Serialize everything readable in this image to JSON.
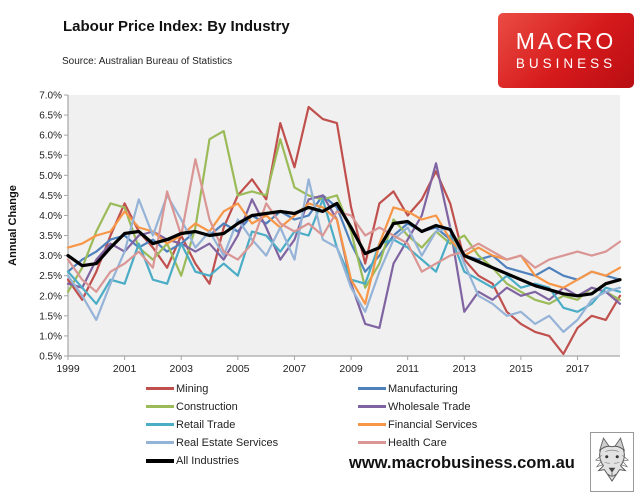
{
  "header": {
    "title": "Labour Price Index: By Industry",
    "source": "Source: Australian Bureau of Statistics"
  },
  "branding": {
    "logo_line1": "MACRO",
    "logo_line2": "BUSINESS",
    "logo_color": "#d61a1c",
    "website": "www.macrobusiness.com.au",
    "fox_logo": "wolf-sketch-icon"
  },
  "chart_data": {
    "type": "line",
    "title": "Labour Price Index: By Industry",
    "xlabel": "",
    "ylabel": "Annual Change",
    "xlim": [
      1999,
      2018.5
    ],
    "ylim": [
      0.5,
      7.0
    ],
    "ytick_step": 0.5,
    "ytick_format": "percent_1dp",
    "xticks": [
      1999,
      2001,
      2003,
      2005,
      2007,
      2009,
      2011,
      2013,
      2015,
      2017
    ],
    "grid": false,
    "plot_background": "#f0f0f0",
    "axis_color": "#a6a6a6",
    "legend_position": "bottom-two-columns",
    "x": [
      1999,
      1999.5,
      2000,
      2000.5,
      2001,
      2001.5,
      2002,
      2002.5,
      2003,
      2003.5,
      2004,
      2004.5,
      2005,
      2005.5,
      2006,
      2006.5,
      2007,
      2007.5,
      2008,
      2008.5,
      2009,
      2009.5,
      2010,
      2010.5,
      2011,
      2011.5,
      2012,
      2012.5,
      2013,
      2013.5,
      2014,
      2014.5,
      2015,
      2015.5,
      2016,
      2016.5,
      2017,
      2017.5,
      2018,
      2018.5
    ],
    "series": [
      {
        "name": "Mining",
        "color": "#C0504D",
        "thick": false,
        "values": [
          2.4,
          1.9,
          2.6,
          3.5,
          4.3,
          3.6,
          3.2,
          2.7,
          3.5,
          2.8,
          2.3,
          3.7,
          4.5,
          4.9,
          4.4,
          6.3,
          5.2,
          6.7,
          6.4,
          6.3,
          4.2,
          2.8,
          4.3,
          4.6,
          4.0,
          4.4,
          5.1,
          4.3,
          2.9,
          2.5,
          2.3,
          1.6,
          1.3,
          1.1,
          1.0,
          0.55,
          1.2,
          1.5,
          1.4,
          2.0
        ]
      },
      {
        "name": "Manufacturing",
        "color": "#4F81BD",
        "thick": false,
        "values": [
          2.6,
          2.9,
          3.1,
          3.4,
          3.5,
          3.2,
          3.4,
          3.1,
          3.3,
          3.6,
          3.5,
          3.8,
          3.6,
          4.0,
          3.8,
          4.1,
          3.9,
          4.0,
          4.5,
          4.2,
          3.3,
          2.6,
          3.0,
          3.5,
          3.8,
          3.6,
          3.7,
          3.4,
          3.0,
          2.9,
          3.0,
          2.7,
          2.6,
          2.5,
          2.7,
          2.5,
          2.4,
          2.6,
          2.5,
          2.4
        ]
      },
      {
        "name": "Construction",
        "color": "#9BBB59",
        "thick": false,
        "values": [
          2.1,
          2.7,
          3.6,
          4.3,
          4.2,
          3.2,
          2.9,
          3.3,
          2.5,
          3.7,
          5.9,
          6.1,
          4.5,
          4.6,
          4.5,
          5.9,
          4.7,
          4.5,
          4.4,
          4.5,
          3.6,
          2.2,
          2.8,
          3.9,
          3.5,
          3.2,
          3.6,
          3.3,
          3.5,
          3.0,
          2.7,
          2.3,
          2.1,
          1.9,
          1.8,
          2.0,
          1.9,
          2.2,
          2.1,
          1.9
        ]
      },
      {
        "name": "Wholesale Trade",
        "color": "#8064A2",
        "thick": false,
        "values": [
          2.3,
          2.2,
          2.9,
          3.3,
          3.1,
          3.5,
          3.6,
          3.4,
          3.3,
          3.1,
          3.3,
          2.9,
          3.5,
          4.4,
          3.7,
          2.9,
          3.4,
          4.4,
          4.5,
          3.9,
          2.3,
          1.3,
          1.2,
          2.8,
          3.4,
          4.0,
          5.3,
          3.7,
          1.6,
          2.1,
          1.9,
          2.2,
          2.0,
          2.1,
          1.9,
          2.2,
          2.0,
          2.2,
          2.1,
          1.8
        ]
      },
      {
        "name": "Retail Trade",
        "color": "#4BACC6",
        "thick": false,
        "values": [
          2.6,
          2.2,
          1.8,
          2.4,
          2.3,
          3.3,
          2.4,
          2.3,
          3.3,
          2.6,
          2.5,
          2.8,
          2.5,
          3.6,
          3.5,
          3.1,
          3.6,
          3.5,
          4.4,
          3.2,
          2.4,
          2.3,
          3.3,
          3.4,
          3.2,
          2.9,
          2.6,
          3.5,
          2.6,
          2.4,
          2.2,
          2.5,
          2.2,
          2.3,
          2.2,
          1.7,
          1.6,
          1.8,
          2.2,
          2.1
        ]
      },
      {
        "name": "Financial Services",
        "color": "#F79646",
        "thick": false,
        "values": [
          3.2,
          3.3,
          3.5,
          3.6,
          4.1,
          3.7,
          3.6,
          3.3,
          3.5,
          3.8,
          3.6,
          4.1,
          4.3,
          3.8,
          4.0,
          3.7,
          4.0,
          4.3,
          4.2,
          3.9,
          2.4,
          1.8,
          3.3,
          4.2,
          4.1,
          3.9,
          4.0,
          3.4,
          3.0,
          3.2,
          3.0,
          2.9,
          3.0,
          2.5,
          2.3,
          2.2,
          2.4,
          2.6,
          2.5,
          2.7
        ]
      },
      {
        "name": "Real Estate Services",
        "color": "#95B3D7",
        "thick": false,
        "values": [
          2.5,
          2.0,
          1.4,
          2.3,
          3.1,
          4.4,
          3.5,
          4.5,
          3.9,
          3.2,
          3.6,
          3.0,
          3.9,
          3.4,
          3.0,
          3.7,
          2.9,
          4.9,
          3.4,
          3.2,
          2.2,
          1.6,
          2.6,
          3.4,
          3.7,
          3.0,
          3.6,
          3.7,
          2.8,
          2.0,
          1.8,
          1.5,
          1.6,
          1.3,
          1.5,
          1.1,
          1.4,
          1.9,
          2.1,
          2.2
        ]
      },
      {
        "name": "Health Care",
        "color": "#D99694",
        "thick": false,
        "values": [
          2.9,
          2.4,
          2.1,
          2.6,
          2.8,
          3.1,
          2.7,
          4.6,
          3.5,
          5.4,
          3.9,
          3.1,
          2.9,
          3.3,
          4.3,
          3.8,
          3.6,
          3.8,
          3.5,
          4.1,
          4.0,
          3.5,
          3.7,
          3.5,
          3.3,
          2.6,
          2.8,
          3.0,
          3.1,
          3.3,
          3.1,
          2.9,
          3.0,
          2.7,
          2.9,
          3.0,
          3.1,
          3.0,
          3.1,
          3.35
        ]
      },
      {
        "name": "All Industries",
        "color": "#000000",
        "thick": true,
        "values": [
          3.0,
          2.75,
          2.8,
          3.2,
          3.55,
          3.6,
          3.3,
          3.4,
          3.55,
          3.6,
          3.5,
          3.55,
          3.8,
          4.0,
          4.05,
          4.1,
          4.05,
          4.2,
          4.1,
          4.3,
          3.7,
          3.05,
          3.2,
          3.8,
          3.85,
          3.6,
          3.75,
          3.65,
          3.0,
          2.85,
          2.7,
          2.55,
          2.4,
          2.25,
          2.15,
          2.05,
          2.0,
          2.05,
          2.3,
          2.4
        ]
      }
    ]
  }
}
